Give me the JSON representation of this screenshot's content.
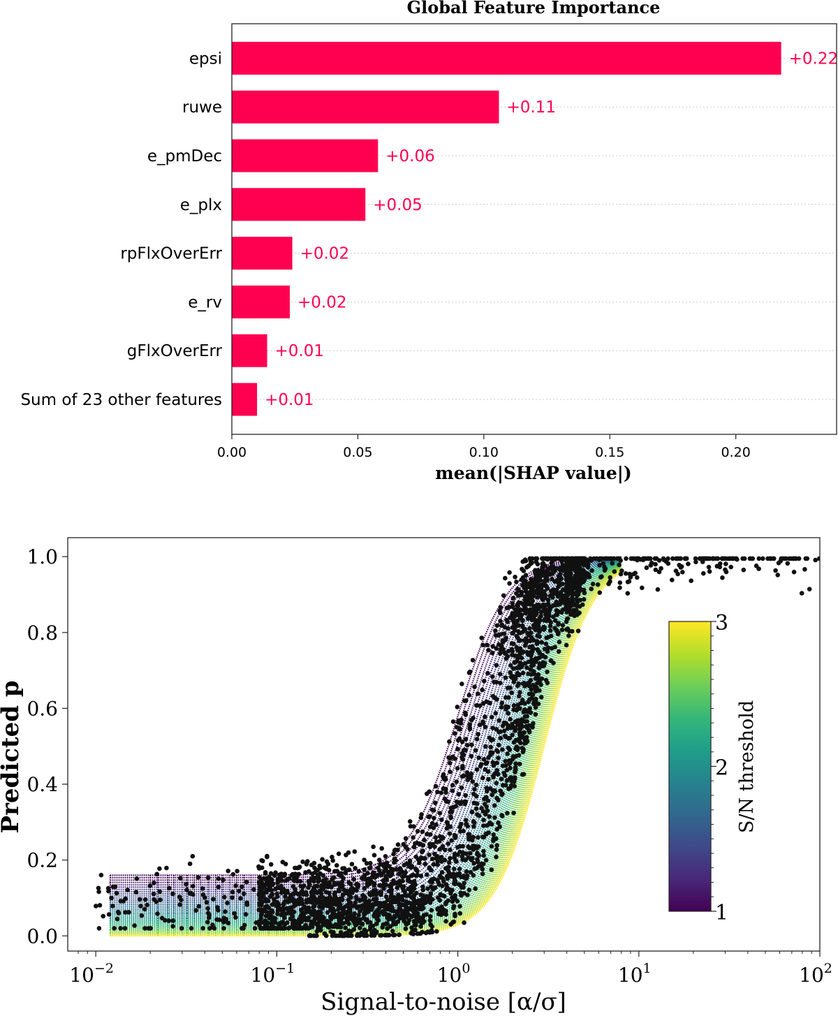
{
  "chart_data": [
    {
      "type": "bar",
      "orientation": "horizontal",
      "title": "Global Feature Importance",
      "xlabel": "mean(|SHAP value|)",
      "ylabel": "",
      "xlim": [
        0,
        0.24
      ],
      "xticks": [
        0.0,
        0.05,
        0.1,
        0.15,
        0.2
      ],
      "xtick_labels": [
        "0.00",
        "0.05",
        "0.10",
        "0.15",
        "0.20"
      ],
      "grid": "horizontal dotted",
      "bar_color": "#ff0051",
      "categories": [
        "epsi",
        "ruwe",
        "e_pmDec",
        "e_plx",
        "rpFlxOverErr",
        "e_rv",
        "gFlxOverErr",
        "Sum of 23 other features"
      ],
      "values": [
        0.218,
        0.106,
        0.058,
        0.053,
        0.024,
        0.023,
        0.014,
        0.01
      ],
      "value_labels": [
        "+0.22",
        "+0.11",
        "+0.06",
        "+0.05",
        "+0.02",
        "+0.02",
        "+0.01",
        "+0.01"
      ]
    },
    {
      "type": "scatter",
      "xlabel": "Signal-to-noise [α/σ]",
      "ylabel": "Predicted p",
      "xscale": "log",
      "xlim": [
        0.007,
        100
      ],
      "ylim": [
        -0.04,
        1.05
      ],
      "xticks": [
        0.01,
        0.1,
        1,
        10,
        100
      ],
      "xtick_labels": [
        {
          "base": "10",
          "exp": "−2"
        },
        {
          "base": "10",
          "exp": "−1"
        },
        {
          "base": "10",
          "exp": "0"
        },
        {
          "base": "10",
          "exp": "1"
        },
        {
          "base": "10",
          "exp": "2"
        }
      ],
      "yticks": [
        0.0,
        0.2,
        0.4,
        0.6,
        0.8,
        1.0
      ],
      "ytick_labels": [
        "0.0",
        "0.2",
        "0.4",
        "0.6",
        "0.8",
        "1.0"
      ],
      "colorbar": {
        "label": "S/N threshold",
        "range": [
          1,
          3
        ],
        "ticks": [
          "1",
          "2",
          "3"
        ],
        "colormap": [
          "#440154",
          "#482878",
          "#3e4989",
          "#31688e",
          "#26828e",
          "#1f9e89",
          "#35b779",
          "#6ece58",
          "#b5de2b",
          "#fde725"
        ],
        "placement": "right, inside axes"
      },
      "curves": {
        "description": "family of dotted model curves colored by S/N threshold",
        "threshold_min": 1,
        "threshold_max": 3,
        "count": 40,
        "floor_at_low_sn": [
          0.16,
          0.0
        ]
      },
      "points": {
        "color": "#111111",
        "count_approx": 3000,
        "trend": "p rises from ~0.1 at S/N 0.1 to ~1.0 above S/N 3"
      }
    }
  ]
}
